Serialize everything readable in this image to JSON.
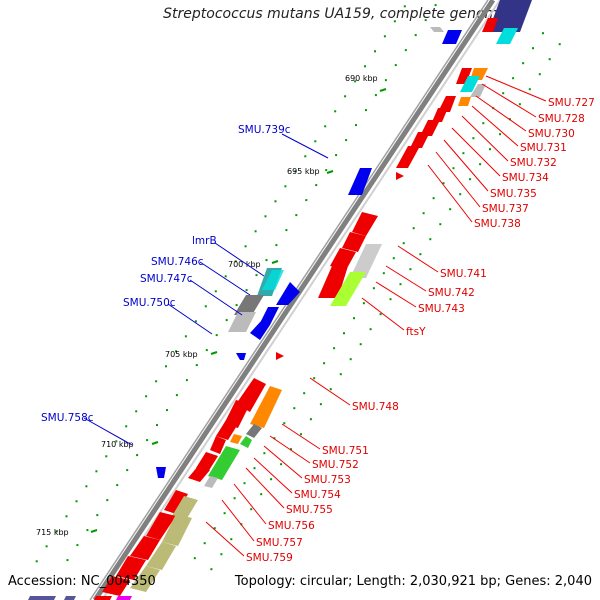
{
  "title": "Streptococcus mutans UA159, complete genome",
  "accession": "Accession: NC_004350",
  "topology": "Topology: circular; Length: 2,030,921 bp; Genes: 2,040",
  "colors": {
    "backbone": "#808080",
    "forward_label": "#e00000",
    "reverse_label": "#0000cc",
    "gene_red": "#ee0000",
    "gene_blue": "#0000ee",
    "gene_orange": "#ff8800",
    "gene_cyan": "#00dddd",
    "gene_green": "#33cc33",
    "gene_lime": "#aaff33",
    "gene_grey": "#bbbbbb",
    "gene_darkgrey": "#777777",
    "gene_olive": "#bbbb77",
    "gene_navy": "#333388",
    "gene_magenta": "#ee00ee",
    "tick_green": "#009900"
  },
  "kbp_labels": [
    "690 kbp",
    "695 kbp",
    "700 kbp",
    "705 kbp",
    "710 kbp",
    "715 kbp"
  ],
  "forward_gene_labels": [
    "SMU.727",
    "SMU.728",
    "SMU.730",
    "SMU.731",
    "SMU.732",
    "SMU.734",
    "SMU.735",
    "SMU.737",
    "SMU.738",
    "SMU.741",
    "SMU.742",
    "SMU.743",
    "ftsY",
    "SMU.748",
    "SMU.751",
    "SMU.752",
    "SMU.753",
    "SMU.754",
    "SMU.755",
    "SMU.756",
    "SMU.757",
    "SMU.759"
  ],
  "reverse_gene_labels": [
    "SMU.739c",
    "lmrB",
    "SMU.746c",
    "SMU.747c",
    "SMU.750c",
    "SMU.758c"
  ]
}
